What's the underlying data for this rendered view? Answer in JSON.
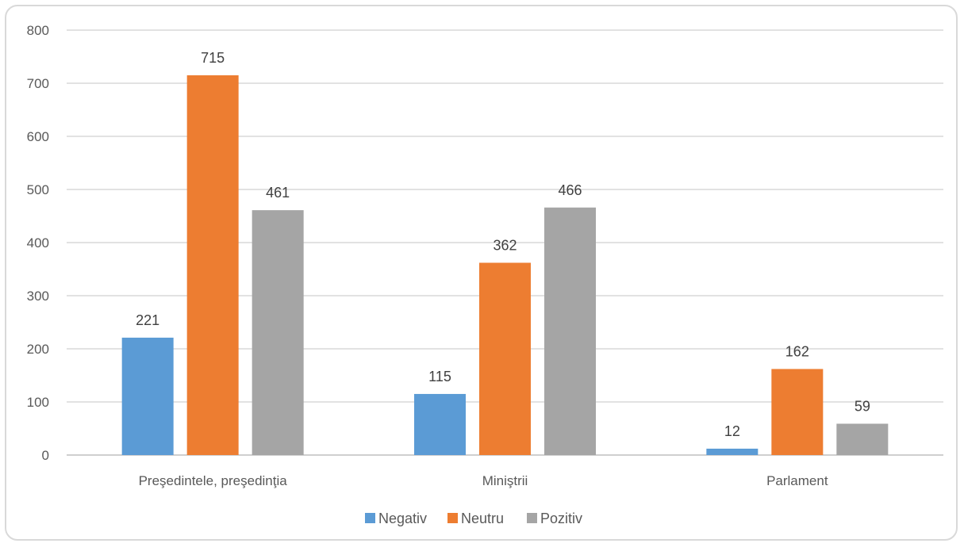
{
  "chart_data": {
    "type": "bar",
    "title": "",
    "xlabel": "",
    "ylabel": "",
    "categories": [
      "Preşedintele, preşedinţia",
      "Miniştrii",
      "Parlament"
    ],
    "series": [
      {
        "name": "Negativ",
        "values": [
          221,
          115,
          12
        ],
        "color": "#5b9bd5"
      },
      {
        "name": "Neutru",
        "values": [
          715,
          362,
          162
        ],
        "color": "#ed7d31"
      },
      {
        "name": "Pozitiv",
        "values": [
          461,
          466,
          59
        ],
        "color": "#a5a5a5"
      }
    ],
    "ylim": [
      0,
      800
    ],
    "yticks": [
      0,
      100,
      200,
      300,
      400,
      500,
      600,
      700,
      800
    ],
    "grid": true,
    "legend_position": "bottom",
    "data_labels": true
  }
}
